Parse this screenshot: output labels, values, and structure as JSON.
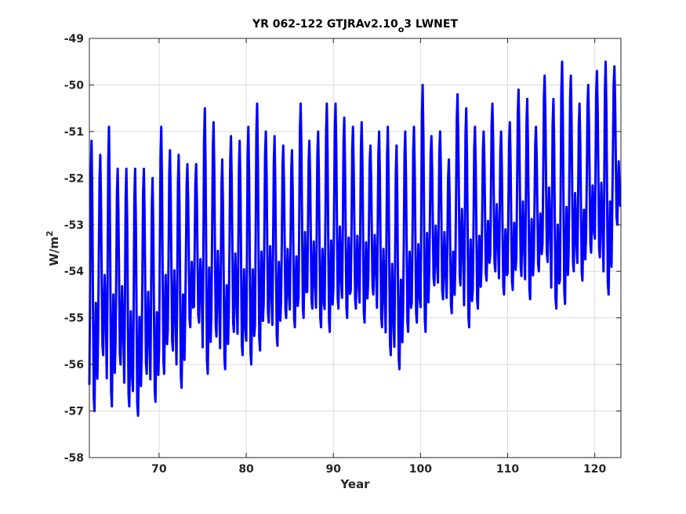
{
  "chart_data": {
    "type": "line",
    "title": {
      "main": "YR 062-122 GTJRAv2.10",
      "subscript": "o",
      "tail": "3 LWNET"
    },
    "xlabel": "Year",
    "ylabel": {
      "base": "W/m",
      "sup": "2"
    },
    "xlim": [
      62,
      123
    ],
    "ylim": [
      -58,
      -49
    ],
    "xticks": [
      70,
      80,
      90,
      100,
      110,
      120
    ],
    "xtick_labels": [
      "70",
      "80",
      "90",
      "100",
      "110",
      "120"
    ],
    "yticks": [
      -58,
      -57,
      -56,
      -55,
      -54,
      -53,
      -52,
      -51,
      -50,
      -49
    ],
    "ytick_labels": [
      "-58",
      "-57",
      "-56",
      "-55",
      "-54",
      "-53",
      "-52",
      "-51",
      "-50",
      "-49"
    ],
    "grid": true,
    "legend": "none",
    "series": [
      {
        "color": "#0000ff",
        "x_start": 62.0,
        "x_step": 0.0833333,
        "annual_maxima": [
          -51.2,
          -51.5,
          -50.9,
          -51.8,
          -51.8,
          -51.8,
          -51.8,
          -52.0,
          -50.9,
          -51.4,
          -51.5,
          -51.7,
          -51.7,
          -50.5,
          -50.8,
          -51.6,
          -51.1,
          -51.2,
          -50.9,
          -50.4,
          -51.0,
          -51.1,
          -51.3,
          -51.4,
          -50.4,
          -51.2,
          -51.0,
          -50.4,
          -50.4,
          -50.7,
          -50.9,
          -50.8,
          -51.3,
          -51.0,
          -50.9,
          -51.3,
          -51.0,
          -50.9,
          -50.0,
          -51.1,
          -51.0,
          -51.6,
          -50.2,
          -50.5,
          -50.9,
          -51.0,
          -50.4,
          -51.0,
          -50.8,
          -50.1,
          -50.3,
          -50.9,
          -49.8,
          -50.3,
          -49.5,
          -49.8,
          -50.4,
          -50.0,
          -49.7,
          -49.5,
          -49.6
        ],
        "annual_minima": [
          -57.0,
          -55.8,
          -56.9,
          -56.0,
          -56.9,
          -57.1,
          -56.2,
          -56.8,
          -56.2,
          -55.7,
          -56.5,
          -55.2,
          -55.1,
          -56.2,
          -55.4,
          -56.1,
          -55.3,
          -55.8,
          -56.0,
          -55.7,
          -55.1,
          -55.6,
          -55.0,
          -55.2,
          -55.0,
          -54.8,
          -55.2,
          -55.3,
          -54.8,
          -55.0,
          -54.8,
          -55.1,
          -54.5,
          -55.2,
          -55.8,
          -56.1,
          -55.3,
          -55.1,
          -55.3,
          -54.3,
          -54.6,
          -54.9,
          -54.3,
          -55.2,
          -54.8,
          -54.2,
          -54.0,
          -54.5,
          -54.4,
          -54.1,
          -54.6,
          -54.0,
          -53.8,
          -54.8,
          -54.7,
          -54.0,
          -54.2,
          -53.6,
          -53.7,
          -54.5,
          -53.0
        ],
        "monthly_shape": [
          0.1,
          0.45,
          0.88,
          1.0,
          0.78,
          0.4,
          0.05,
          0.0,
          0.22,
          0.4,
          0.25,
          0.12
        ]
      }
    ]
  }
}
